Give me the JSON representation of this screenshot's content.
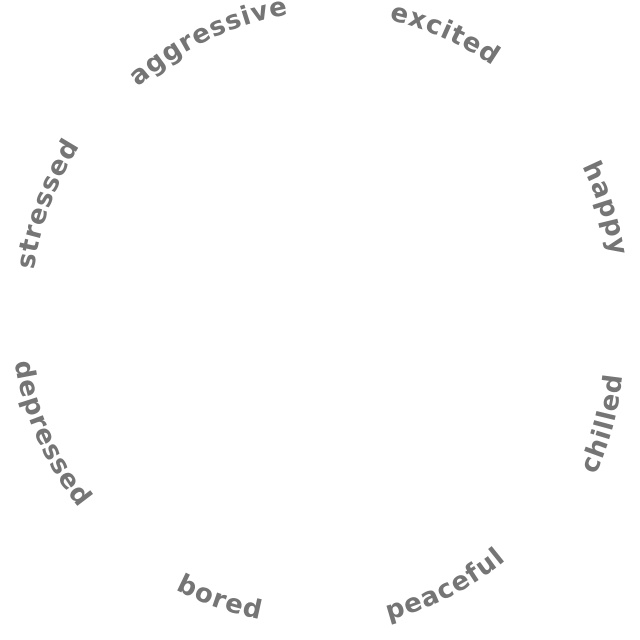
{
  "wheel": {
    "label_color": "#757575",
    "background": "#ffffff",
    "moods": [
      {
        "label": "excited"
      },
      {
        "label": "happy"
      },
      {
        "label": "chilled"
      },
      {
        "label": "peaceful"
      },
      {
        "label": "bored"
      },
      {
        "label": "depressed"
      },
      {
        "label": "stressed"
      },
      {
        "label": "aggressive"
      }
    ]
  }
}
